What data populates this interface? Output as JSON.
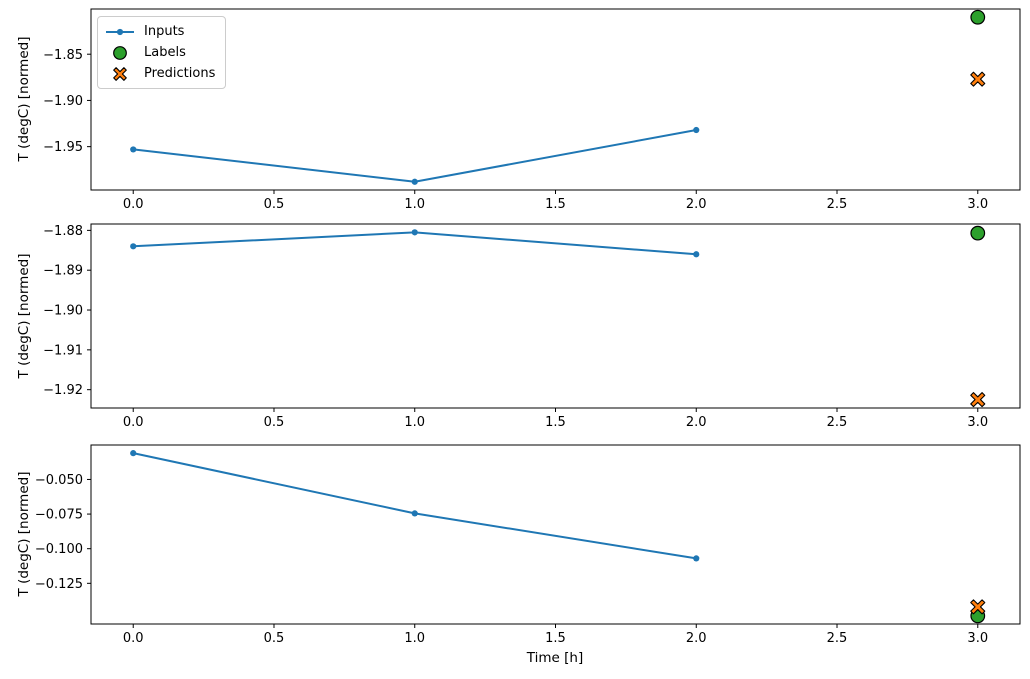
{
  "colors": {
    "background": "#ffffff",
    "spine": "#000000",
    "tick_text": "#000000",
    "inputs_line": "#1f77b4",
    "labels_marker": "#2ca02c",
    "predictions_marker": "#ff7f0e",
    "marker_edge": "#000000",
    "legend_border": "#cccccc"
  },
  "legend": {
    "position": "upper left",
    "items": [
      {
        "label": "Inputs",
        "icon": "line-with-dot",
        "color": "#1f77b4"
      },
      {
        "label": "Labels",
        "icon": "circle",
        "color": "#2ca02c"
      },
      {
        "label": "Predictions",
        "icon": "x-cross",
        "color": "#ff7f0e"
      }
    ]
  },
  "chart_data": [
    {
      "type": "line",
      "ylabel": "T (degC) [normed]",
      "xlabel": "",
      "grid": false,
      "x_ticks": [
        0.0,
        0.5,
        1.0,
        1.5,
        2.0,
        2.5,
        3.0
      ],
      "x_tick_labels": [
        "0.0",
        "0.5",
        "1.0",
        "1.5",
        "2.0",
        "2.5",
        "3.0"
      ],
      "y_ticks": [
        -1.85,
        -1.9,
        -1.95
      ],
      "y_tick_labels": [
        "−1.85",
        "−1.90",
        "−1.95"
      ],
      "series": [
        {
          "name": "Inputs",
          "kind": "line",
          "color": "#1f77b4",
          "x": [
            0,
            1,
            2
          ],
          "y": [
            -1.953,
            -1.988,
            -1.932
          ]
        },
        {
          "name": "Labels",
          "kind": "circle",
          "color": "#2ca02c",
          "x": [
            3
          ],
          "y": [
            -1.81
          ]
        },
        {
          "name": "Predictions",
          "kind": "x",
          "color": "#ff7f0e",
          "x": [
            3
          ],
          "y": [
            -1.877
          ]
        }
      ]
    },
    {
      "type": "line",
      "ylabel": "T (degC) [normed]",
      "xlabel": "",
      "grid": false,
      "x_ticks": [
        0.0,
        0.5,
        1.0,
        1.5,
        2.0,
        2.5,
        3.0
      ],
      "x_tick_labels": [
        "0.0",
        "0.5",
        "1.0",
        "1.5",
        "2.0",
        "2.5",
        "3.0"
      ],
      "y_ticks": [
        -1.88,
        -1.89,
        -1.9,
        -1.91,
        -1.92
      ],
      "y_tick_labels": [
        "−1.88",
        "−1.89",
        "−1.90",
        "−1.91",
        "−1.92"
      ],
      "series": [
        {
          "name": "Inputs",
          "kind": "line",
          "color": "#1f77b4",
          "x": [
            0,
            1,
            2
          ],
          "y": [
            -1.884,
            -1.8805,
            -1.886
          ]
        },
        {
          "name": "Labels",
          "kind": "circle",
          "color": "#2ca02c",
          "x": [
            3
          ],
          "y": [
            -1.8807
          ]
        },
        {
          "name": "Predictions",
          "kind": "x",
          "color": "#ff7f0e",
          "x": [
            3
          ],
          "y": [
            -1.9225
          ]
        }
      ]
    },
    {
      "type": "line",
      "ylabel": "T (degC) [normed]",
      "xlabel": "Time [h]",
      "grid": false,
      "x_ticks": [
        0.0,
        0.5,
        1.0,
        1.5,
        2.0,
        2.5,
        3.0
      ],
      "x_tick_labels": [
        "0.0",
        "0.5",
        "1.0",
        "1.5",
        "2.0",
        "2.5",
        "3.0"
      ],
      "y_ticks": [
        -0.05,
        -0.075,
        -0.1,
        -0.125
      ],
      "y_tick_labels": [
        "−0.050",
        "−0.075",
        "−0.100",
        "−0.125"
      ],
      "series": [
        {
          "name": "Inputs",
          "kind": "line",
          "color": "#1f77b4",
          "x": [
            0,
            1,
            2
          ],
          "y": [
            -0.031,
            -0.0745,
            -0.107
          ]
        },
        {
          "name": "Labels",
          "kind": "circle",
          "color": "#2ca02c",
          "x": [
            3
          ],
          "y": [
            -0.1485
          ]
        },
        {
          "name": "Predictions",
          "kind": "x",
          "color": "#ff7f0e",
          "x": [
            3
          ],
          "y": [
            -0.142
          ]
        }
      ]
    }
  ]
}
